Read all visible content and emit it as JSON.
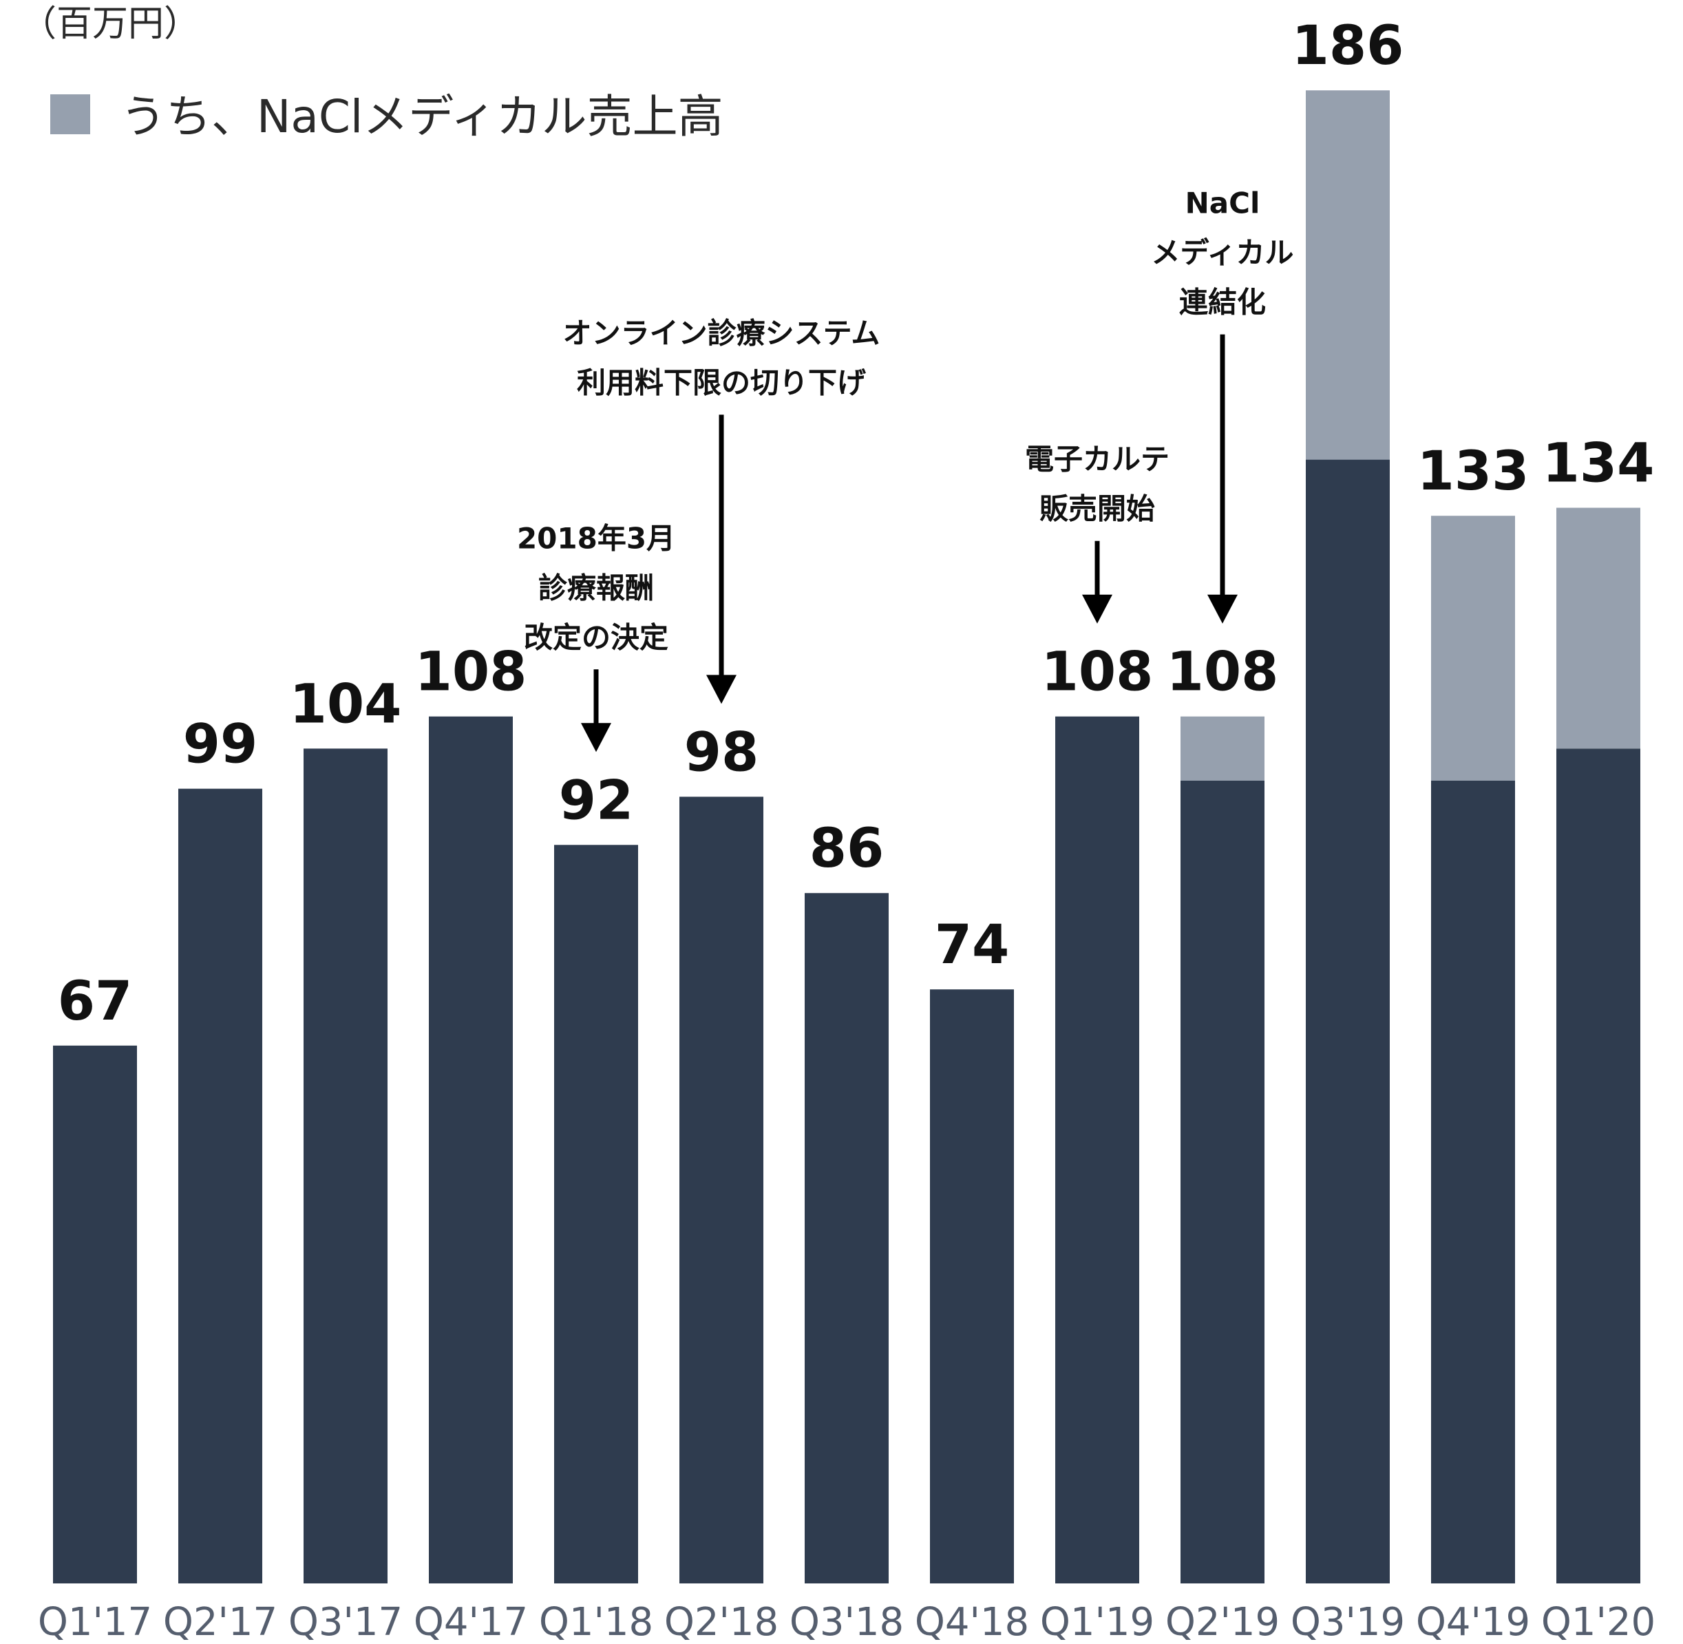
{
  "chart_data": {
    "type": "bar",
    "stacked": true,
    "unit_label": "（百万円）",
    "legend": {
      "label": "うち、NaClメディカル売上高",
      "color": "#96a0ae",
      "placement": "top-left"
    },
    "categories": [
      "Q1'17",
      "Q2'17",
      "Q3'17",
      "Q4'17",
      "Q1'18",
      "Q2'18",
      "Q3'18",
      "Q4'18",
      "Q1'19",
      "Q2'19",
      "Q3'19",
      "Q4'19",
      "Q1'20"
    ],
    "totals": [
      67,
      99,
      104,
      108,
      92,
      98,
      86,
      74,
      108,
      108,
      186,
      133,
      134
    ],
    "total_labels": [
      "67",
      "99",
      "104",
      "108",
      "92",
      "98",
      "86",
      "74",
      "108",
      "108",
      "186",
      "133",
      "134"
    ],
    "series": [
      {
        "values": [
          67,
          99,
          104,
          108,
          92,
          98,
          86,
          74,
          108,
          100,
          140,
          100,
          104
        ],
        "color": "#2f3c4f"
      },
      {
        "name": "うち、NaClメディカル売上高",
        "values": [
          0,
          0,
          0,
          0,
          0,
          0,
          0,
          0,
          0,
          8,
          46,
          33,
          30
        ],
        "color": "#96a0ae"
      }
    ],
    "ylim": [
      0,
      186
    ],
    "grid": false,
    "annotations": [
      {
        "category_index": 4,
        "lines": [
          "2018年3月",
          "診療報酬",
          "改定の決定"
        ]
      },
      {
        "category_index": 5,
        "lines": [
          "オンライン診療システム",
          "利用料下限の切り下げ"
        ]
      },
      {
        "category_index": 8,
        "lines": [
          "電子カルテ",
          "販売開始"
        ]
      },
      {
        "category_index": 9,
        "lines": [
          "NaCl",
          "メディカル",
          "連結化"
        ]
      }
    ]
  }
}
